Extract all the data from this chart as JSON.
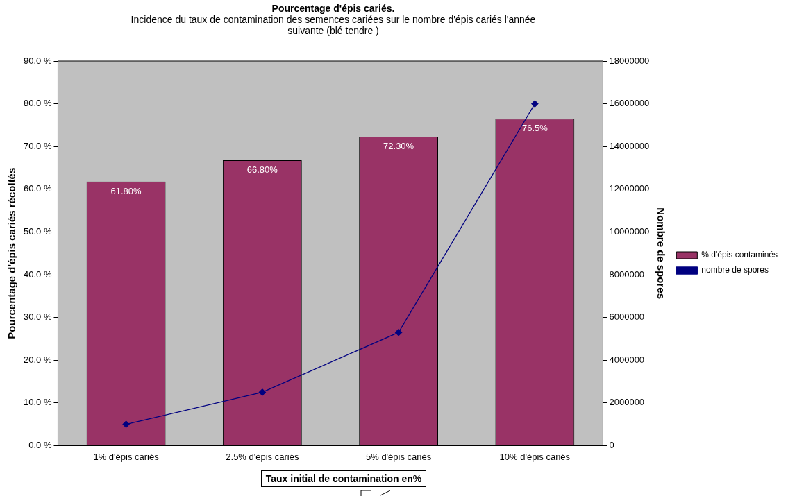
{
  "chart_data": {
    "type": "bar",
    "title": "Pourcentage d'épis cariés.",
    "subtitle": "Incidence du taux de contamination des semences cariées sur le nombre d'épis cariés l'année suivante (blé tendre )",
    "xlabel": "Taux initial de contamination en%",
    "ylabel": "Pourcentage d'épis cariés récoltés",
    "y2label": "Nombre de spores",
    "categories": [
      "1% d'épis cariés",
      "2.5% d'épis cariés",
      "5% d'épis cariés",
      "10% d'épis cariés"
    ],
    "series": [
      {
        "name": "% d'épis contaminés",
        "color": "#993366",
        "values": [
          61.8,
          66.8,
          72.3,
          76.5
        ],
        "value_labels": [
          "61.80%",
          "66.80%",
          "72.30%",
          "76.5%"
        ]
      },
      {
        "name": "nombre de spores",
        "type": "line",
        "axis": "y2",
        "color": "#000080",
        "values": [
          1000000,
          2500000,
          5300000,
          16000000
        ],
        "marker": "diamond",
        "line_style": "solid"
      }
    ],
    "ylim": [
      0,
      90
    ],
    "yticks": [
      {
        "value": 0,
        "label": "0.0 %"
      },
      {
        "value": 10,
        "label": "10.0 %"
      },
      {
        "value": 20,
        "label": "20.0 %"
      },
      {
        "value": 30,
        "label": "30.0 %"
      },
      {
        "value": 40,
        "label": "40.0 %"
      },
      {
        "value": 50,
        "label": "50.0 %"
      },
      {
        "value": 60,
        "label": "60.0 %"
      },
      {
        "value": 70,
        "label": "70.0 %"
      },
      {
        "value": 80,
        "label": "80.0 %"
      },
      {
        "value": 90,
        "label": "90.0 %"
      }
    ],
    "y2lim": [
      0,
      18000000
    ],
    "y2ticks": [
      0,
      2000000,
      4000000,
      6000000,
      8000000,
      10000000,
      12000000,
      14000000,
      16000000,
      18000000
    ],
    "grid": false,
    "legend": "right"
  }
}
